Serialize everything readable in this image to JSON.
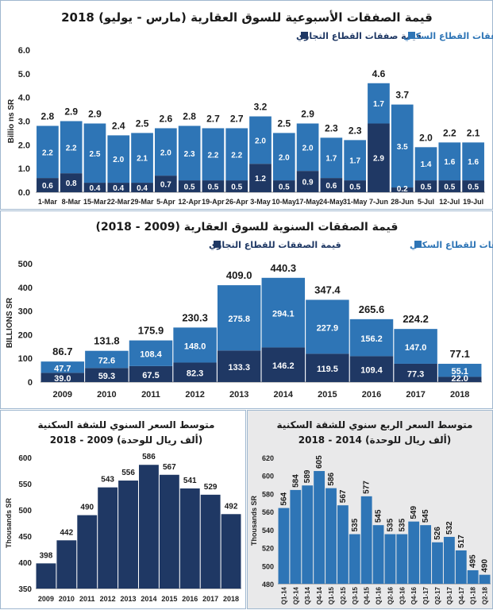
{
  "colors": {
    "commercial": "#1f3864",
    "residential": "#2e75b6",
    "bar_single": "#1f3864",
    "frame": "#9fb7cf",
    "panel_gray": "#e9e9ea"
  },
  "chart_data": [
    {
      "id": "weekly",
      "type": "bar",
      "stacked": true,
      "title": "قيمة الصفقات الأسبوعية للسوق العقارية (مارس - يوليو) 2018",
      "legend": [
        "قيمة صفقات القطاع التجاري",
        "قيمة صفقات القطاع السكني"
      ],
      "ylabel": "Billio ns SR",
      "ylim": [
        0,
        6
      ],
      "yticks": [
        "0.0",
        "1.0",
        "2.0",
        "3.0",
        "4.0",
        "5.0",
        "6.0"
      ],
      "categories": [
        "1-Mar",
        "8-Mar",
        "15-Mar",
        "22-Mar",
        "29-Mar",
        "5-Apr",
        "12-Apr",
        "19-Apr",
        "26-Apr",
        "3-May",
        "10-May",
        "17-May",
        "24-May",
        "31-May",
        "7-Jun",
        "28-Jun",
        "5-Jul",
        "12-Jul",
        "19-Jul"
      ],
      "series": [
        {
          "name": "قيمة صفقات القطاع التجاري",
          "values": [
            0.6,
            0.8,
            0.4,
            0.4,
            0.4,
            0.7,
            0.5,
            0.5,
            0.5,
            1.2,
            0.5,
            0.9,
            0.6,
            0.5,
            2.9,
            0.2,
            0.5,
            0.5,
            0.5
          ]
        },
        {
          "name": "قيمة صفقات القطاع السكني",
          "values": [
            2.2,
            2.2,
            2.5,
            2.0,
            2.1,
            2.0,
            2.3,
            2.2,
            2.2,
            2.0,
            2.0,
            2.0,
            1.7,
            1.7,
            1.7,
            3.5,
            1.4,
            1.6,
            1.6
          ]
        }
      ],
      "totals": [
        2.8,
        2.9,
        2.9,
        2.4,
        2.5,
        2.6,
        2.8,
        2.7,
        2.7,
        3.2,
        2.5,
        2.9,
        2.3,
        2.3,
        4.6,
        3.7,
        2.0,
        2.2,
        2.1
      ]
    },
    {
      "id": "annual",
      "type": "bar",
      "stacked": true,
      "title": "قيمة الصفقات السنوية للسوق العقارية (2009 - 2018)",
      "legend": [
        "قيمة الصفقات للقطاع التجاري",
        "قيمة الصفقات للقطاع السكني"
      ],
      "ylabel": "BILLIONS SR",
      "ylim": [
        0,
        500
      ],
      "yticks": [
        "0",
        "100",
        "200",
        "300",
        "400",
        "500"
      ],
      "categories": [
        "2009",
        "2010",
        "2011",
        "2012",
        "2013",
        "2014",
        "2015",
        "2016",
        "2017",
        "2018"
      ],
      "series": [
        {
          "name": "قيمة الصفقات للقطاع التجاري",
          "values": [
            39.0,
            59.3,
            67.5,
            82.3,
            133.3,
            146.2,
            119.5,
            109.4,
            77.3,
            22.0
          ]
        },
        {
          "name": "قيمة الصفقات للقطاع السكني",
          "values": [
            47.7,
            72.6,
            108.4,
            148.0,
            275.8,
            294.1,
            227.9,
            156.2,
            147.0,
            55.1
          ]
        }
      ],
      "totals": [
        86.7,
        131.8,
        175.9,
        230.3,
        409.0,
        440.3,
        347.4,
        265.6,
        224.2,
        77.1
      ]
    },
    {
      "id": "avg_annual",
      "type": "bar",
      "title": [
        "متوسط السعر السنوي للشقة السكنية",
        "(ألف ريال للوحدة) 2009 - 2018"
      ],
      "ylabel": "Thousands SR",
      "ylim": [
        350,
        600
      ],
      "yticks": [
        "350",
        "400",
        "450",
        "500",
        "550",
        "600"
      ],
      "categories": [
        "2009",
        "2010",
        "2011",
        "2012",
        "2013",
        "2014",
        "2015",
        "2016",
        "2017",
        "2018"
      ],
      "values": [
        398,
        442,
        490,
        543,
        556,
        586,
        567,
        541,
        529,
        492
      ]
    },
    {
      "id": "avg_quarterly",
      "type": "bar",
      "title": [
        "متوسط السعر الربع سنوي للشقة السكنية",
        "(ألف ريال للوحدة) 2014 - 2018"
      ],
      "ylabel": "Thousands SR",
      "ylim": [
        480,
        620
      ],
      "yticks": [
        "480",
        "500",
        "520",
        "540",
        "560",
        "580",
        "600",
        "620"
      ],
      "categories": [
        "Q1-14",
        "Q2-14",
        "Q3-14",
        "Q4-14",
        "Q1-15",
        "Q2-15",
        "Q3-15",
        "Q4-15",
        "Q1-16",
        "Q2-16",
        "Q3-16",
        "Q4-16",
        "Q1-17",
        "Q2-17",
        "Q3-17",
        "Q4-17",
        "Q1-18",
        "Q2-18"
      ],
      "values": [
        564,
        584,
        589,
        605,
        586,
        567,
        535,
        577,
        545,
        535,
        535,
        549,
        545,
        526,
        532,
        517,
        495,
        490
      ]
    }
  ]
}
